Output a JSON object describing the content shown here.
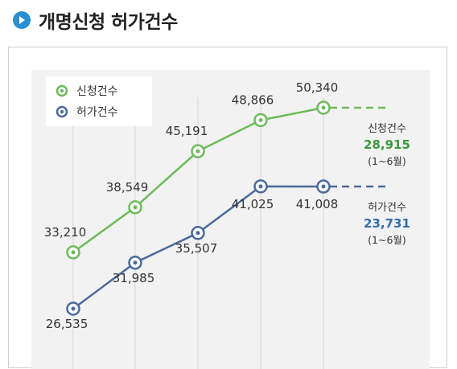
{
  "header": {
    "title": "개명신청 허가건수",
    "icon": "play-circle-icon"
  },
  "colors": {
    "accent_blue": "#2a8fd0",
    "green": "#6dbb5a",
    "navy": "#4a6a9c",
    "green_text": "#3a9a3a",
    "blue_text": "#2f6fb0",
    "plot_bg": "#f2f2f2"
  },
  "chart_data": {
    "type": "line",
    "categories": [
      "",
      "",
      "",
      "",
      ""
    ],
    "series": [
      {
        "name": "신청건수",
        "values": [
          33210,
          38549,
          45191,
          48866,
          50340
        ],
        "labels": [
          "33,210",
          "38,549",
          "45,191",
          "48,866",
          "50,340"
        ]
      },
      {
        "name": "허가건수",
        "values": [
          26535,
          31985,
          35507,
          41025,
          41008
        ],
        "labels": [
          "26,535",
          "31,985",
          "35,507",
          "41,025",
          "41,008"
        ]
      }
    ],
    "projection": [
      {
        "series": "신청건수",
        "title": "신청건수",
        "value": "28,915",
        "period": "(1~6월)"
      },
      {
        "series": "허가건수",
        "title": "허가건수",
        "value": "23,731",
        "period": "(1~6월)"
      }
    ],
    "legend_position": "top-left",
    "grid": "vertical"
  }
}
